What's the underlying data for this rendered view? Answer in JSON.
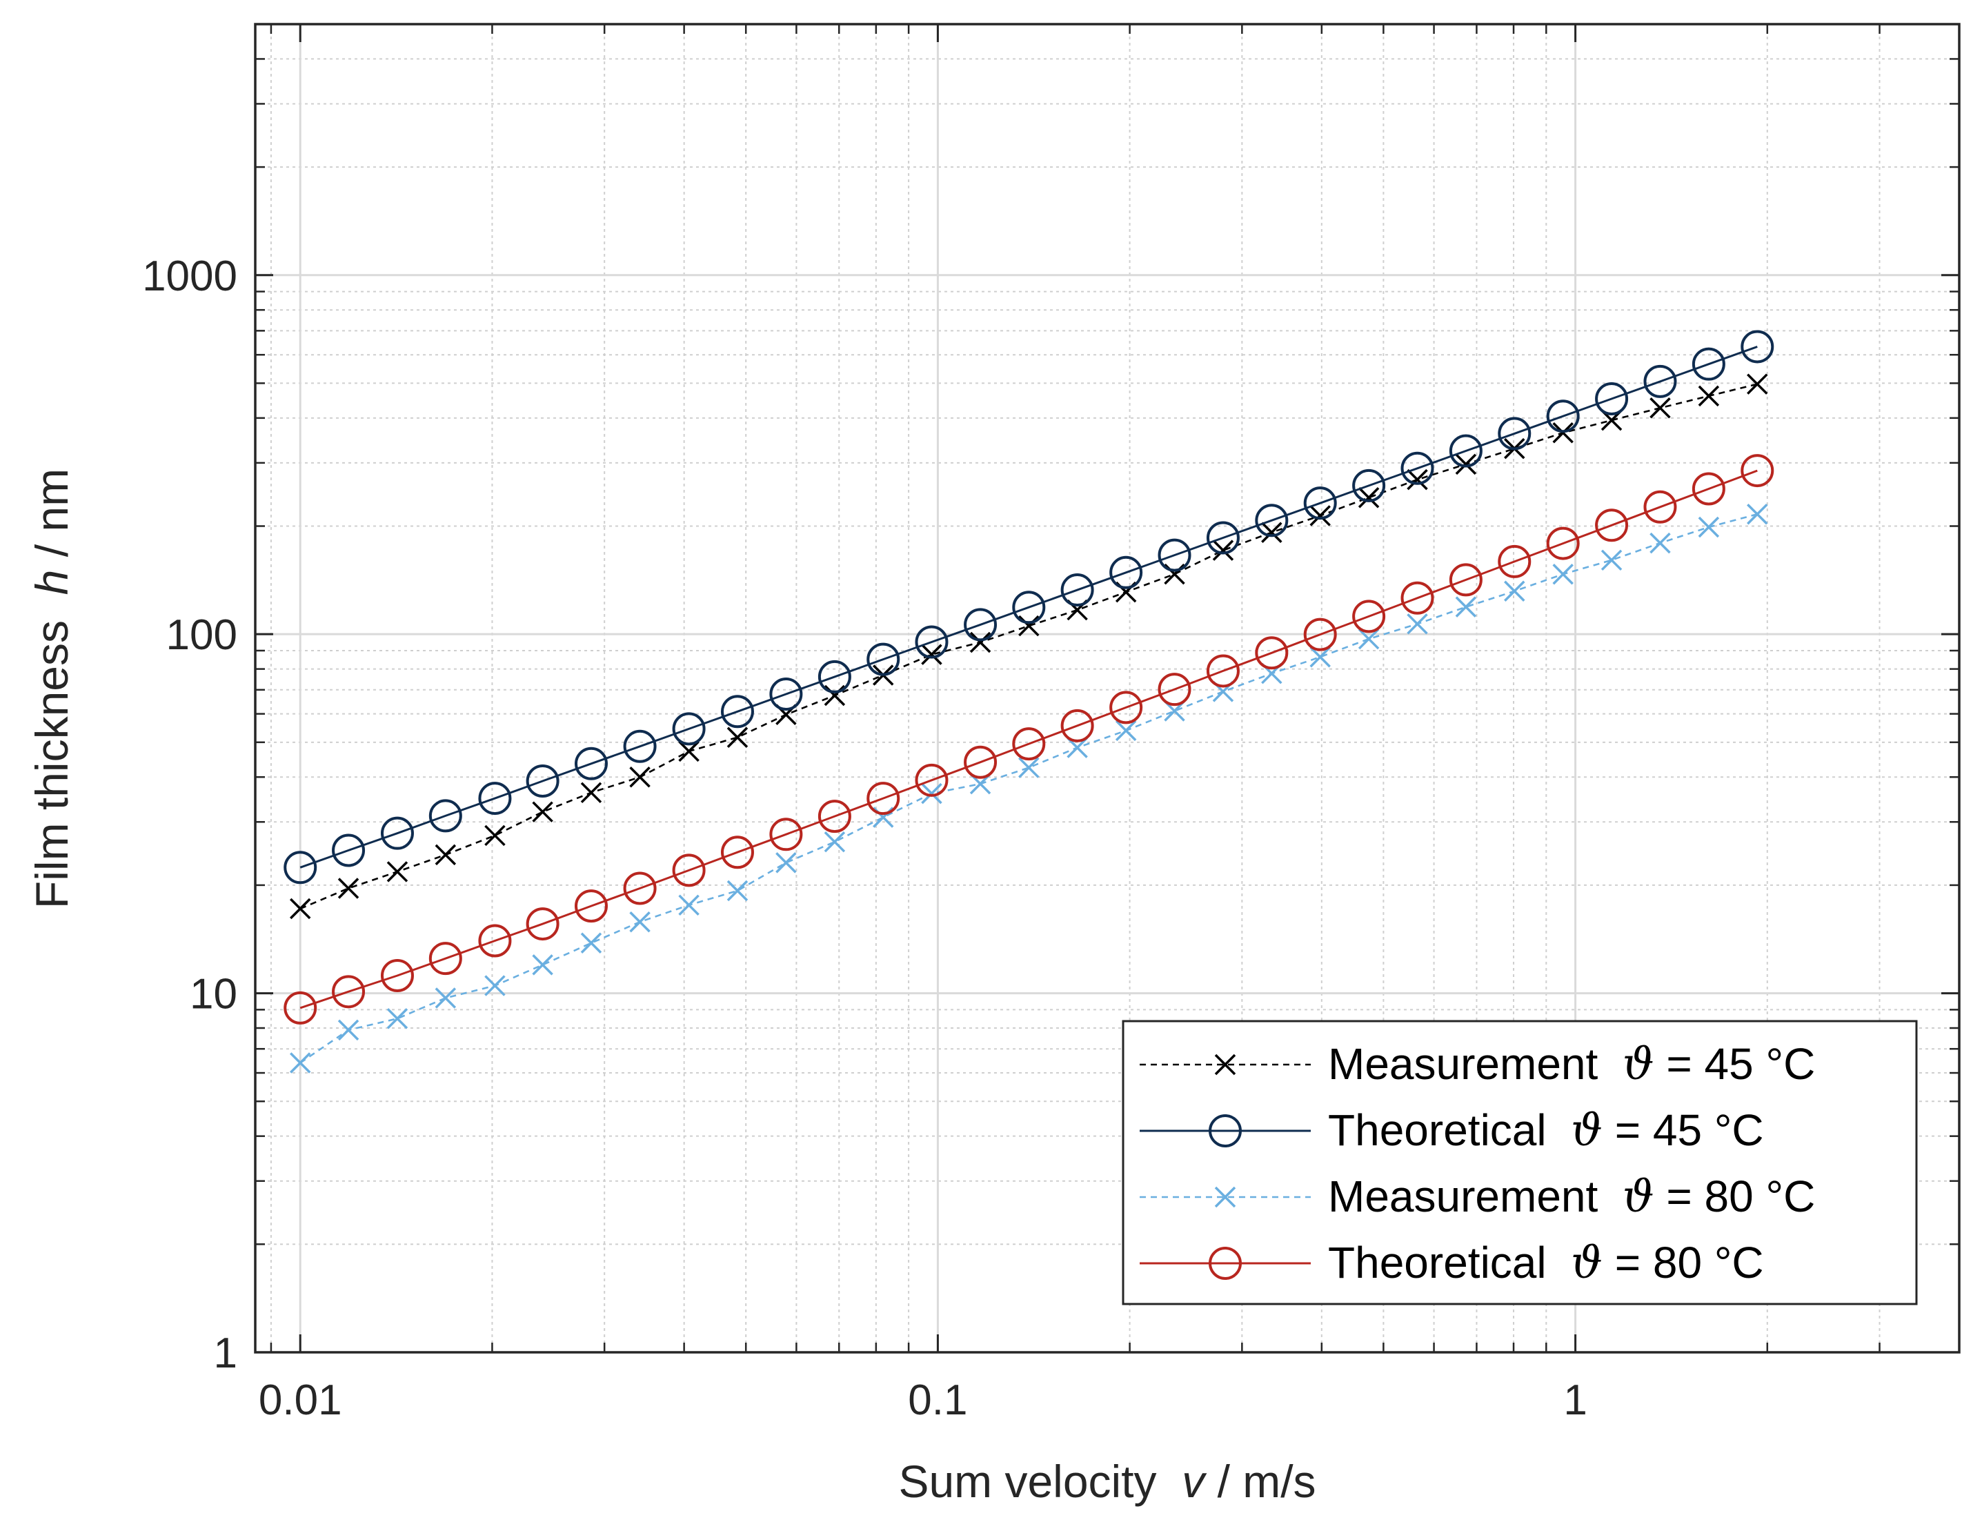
{
  "chart_data": {
    "type": "line",
    "title": "",
    "xlabel_prefix": "Sum velocity  ",
    "xlabel_var": "v",
    "xlabel_suffix": " / m/s",
    "ylabel_prefix": "Film thickness  ",
    "ylabel_var": "h",
    "ylabel_suffix": " / nm",
    "xscale": "log",
    "yscale": "log",
    "xlim": [
      0.0085,
      4
    ],
    "ylim": [
      1,
      5000
    ],
    "grid": true,
    "legend_position": "bottom-right",
    "x_ticks": [
      0.01,
      0.1,
      1
    ],
    "x_tick_labels": [
      "0.01",
      "0.1",
      "1"
    ],
    "y_ticks": [
      1,
      10,
      100,
      1000
    ],
    "y_tick_labels": [
      "1",
      "10",
      "100",
      "1000"
    ],
    "x": [
      0.01,
      0.0119,
      0.0142,
      0.0169,
      0.0202,
      0.024,
      0.0286,
      0.0341,
      0.0407,
      0.0485,
      0.0578,
      0.0689,
      0.0821,
      0.0978,
      0.1166,
      0.1389,
      0.1655,
      0.1973,
      0.2351,
      0.2802,
      0.3339,
      0.3979,
      0.4742,
      0.5651,
      0.6734,
      0.8025,
      0.9564,
      1.1397,
      1.3582,
      1.6186,
      1.9289
    ],
    "series": [
      {
        "name": "Measurement",
        "temp_label": " = 45 °C",
        "symbol": "ϑ",
        "color": "#000000",
        "line_style": "dashed",
        "marker": "x",
        "values": [
          17.2,
          19.6,
          21.8,
          24.3,
          27.5,
          32.0,
          36.2,
          40.0,
          47.2,
          51.6,
          59.7,
          67.5,
          76.9,
          87.8,
          94.9,
          105.5,
          116.8,
          131.0,
          147.0,
          171.2,
          192.0,
          213.8,
          240.1,
          269.5,
          297.4,
          328.8,
          363.8,
          394.2,
          426.6,
          460.8,
          497.2
        ]
      },
      {
        "name": "Theoretical",
        "temp_label": " = 45 °C",
        "symbol": "ϑ",
        "color": "#0f2c4f",
        "line_style": "solid",
        "marker": "o",
        "values": [
          22.4,
          25.0,
          27.9,
          31.2,
          34.9,
          39.0,
          43.6,
          48.7,
          54.5,
          60.9,
          68.1,
          76.1,
          85.1,
          95.1,
          106.3,
          118.8,
          132.8,
          148.5,
          166.0,
          185.5,
          207.4,
          231.8,
          259.2,
          289.7,
          323.9,
          362.0,
          404.7,
          452.4,
          505.7,
          565.3,
          632.0
        ]
      },
      {
        "name": "Measurement",
        "temp_label": " = 80 °C",
        "symbol": "ϑ",
        "color": "#6aafe0",
        "line_style": "dashed",
        "marker": "x",
        "values": [
          6.4,
          7.9,
          8.5,
          9.7,
          10.5,
          12.0,
          13.8,
          15.8,
          17.6,
          19.3,
          23.1,
          26.4,
          30.9,
          36.0,
          38.3,
          42.5,
          48.3,
          53.9,
          61.1,
          69.2,
          77.7,
          86.4,
          97.0,
          106.8,
          119.1,
          131.8,
          146.9,
          160.8,
          179.4,
          198.7,
          215.9
        ]
      },
      {
        "name": "Theoretical",
        "temp_label": " = 80 °C",
        "symbol": "ϑ",
        "color": "#b8261f",
        "line_style": "solid",
        "marker": "o",
        "values": [
          9.1,
          10.1,
          11.2,
          12.5,
          14.0,
          15.6,
          17.5,
          19.6,
          22.0,
          24.7,
          27.7,
          31.1,
          34.9,
          39.2,
          44.0,
          49.5,
          55.6,
          62.5,
          70.2,
          79.0,
          88.7,
          99.8,
          112.1,
          126.1,
          141.7,
          159.3,
          179.0,
          201.1,
          226.1,
          254.0,
          285.5
        ]
      }
    ]
  }
}
